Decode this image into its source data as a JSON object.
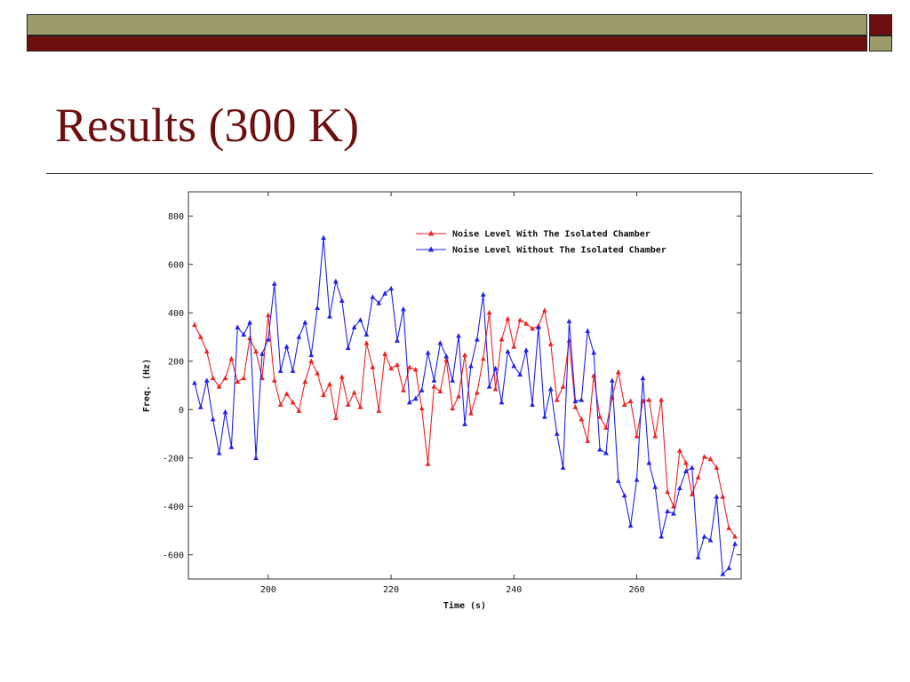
{
  "slide": {
    "title": "Results (300 K)",
    "colors": {
      "accent_dark_red": "#6e0f0f",
      "accent_olive": "#9c9b6a"
    }
  },
  "chart_data": {
    "type": "line",
    "title": "",
    "xlabel": "Time (s)",
    "ylabel": "Freq. (Hz)",
    "xlim": [
      187,
      277
    ],
    "ylim": [
      -700,
      900
    ],
    "xticks": [
      200,
      220,
      240,
      260
    ],
    "yticks": [
      -600,
      -400,
      -200,
      0,
      200,
      400,
      600,
      800
    ],
    "legend_position": "top-right",
    "grid": false,
    "series": [
      {
        "name": "Noise Level With The Isolated Chamber",
        "color": "#ee2222",
        "marker": "triangle",
        "x": [
          188,
          189,
          190,
          191,
          192,
          193,
          194,
          195,
          196,
          197,
          198,
          199,
          200,
          201,
          202,
          203,
          204,
          205,
          206,
          207,
          208,
          209,
          210,
          211,
          212,
          213,
          214,
          215,
          216,
          217,
          218,
          219,
          220,
          221,
          222,
          223,
          224,
          225,
          226,
          227,
          228,
          229,
          230,
          231,
          232,
          233,
          234,
          235,
          236,
          237,
          238,
          239,
          240,
          241,
          242,
          243,
          244,
          245,
          246,
          247,
          248,
          249,
          250,
          251,
          252,
          253,
          254,
          255,
          256,
          257,
          258,
          259,
          260,
          261,
          262,
          263,
          264,
          265,
          266,
          267,
          268,
          269,
          270,
          271,
          272,
          273,
          274,
          275,
          276
        ],
        "y": [
          350,
          300,
          240,
          130,
          95,
          130,
          210,
          115,
          130,
          295,
          240,
          130,
          390,
          120,
          20,
          65,
          30,
          -5,
          115,
          200,
          150,
          60,
          105,
          -35,
          135,
          20,
          70,
          10,
          275,
          175,
          -5,
          230,
          170,
          185,
          80,
          175,
          165,
          5,
          -225,
          95,
          75,
          205,
          5,
          55,
          225,
          -15,
          70,
          210,
          400,
          85,
          290,
          375,
          260,
          370,
          355,
          335,
          345,
          410,
          270,
          40,
          95,
          285,
          10,
          -40,
          -130,
          140,
          -30,
          -75,
          50,
          155,
          20,
          35,
          -110,
          35,
          40,
          -110,
          40,
          -340,
          -400,
          -170,
          -220,
          -350,
          -280,
          -195,
          -205,
          -240,
          -360,
          -490,
          -525
        ]
      },
      {
        "name": "Noise Level Without The Isolated Chamber",
        "color": "#2222ee",
        "marker": "triangle",
        "x": [
          188,
          189,
          190,
          191,
          192,
          193,
          194,
          195,
          196,
          197,
          198,
          199,
          200,
          201,
          202,
          203,
          204,
          205,
          206,
          207,
          208,
          209,
          210,
          211,
          212,
          213,
          214,
          215,
          216,
          217,
          218,
          219,
          220,
          221,
          222,
          223,
          224,
          225,
          226,
          227,
          228,
          229,
          230,
          231,
          232,
          233,
          234,
          235,
          236,
          237,
          238,
          239,
          240,
          241,
          242,
          243,
          244,
          245,
          246,
          247,
          248,
          249,
          250,
          251,
          252,
          253,
          254,
          255,
          256,
          257,
          258,
          259,
          260,
          261,
          262,
          263,
          264,
          265,
          266,
          267,
          268,
          269,
          270,
          271,
          272,
          273,
          274,
          275,
          276
        ],
        "y": [
          110,
          10,
          120,
          -40,
          -180,
          -10,
          -155,
          340,
          310,
          360,
          -200,
          230,
          290,
          520,
          160,
          260,
          160,
          300,
          360,
          225,
          420,
          710,
          385,
          530,
          450,
          255,
          340,
          370,
          310,
          465,
          440,
          480,
          500,
          285,
          415,
          30,
          45,
          80,
          235,
          120,
          275,
          220,
          120,
          305,
          -60,
          180,
          290,
          475,
          95,
          170,
          30,
          240,
          180,
          145,
          245,
          20,
          340,
          -30,
          85,
          -100,
          -240,
          365,
          35,
          40,
          325,
          235,
          -165,
          -180,
          120,
          -295,
          -355,
          -480,
          -290,
          130,
          -220,
          -320,
          -525,
          -420,
          -430,
          -325,
          -255,
          -240,
          -610,
          -525,
          -540,
          -360,
          -680,
          -655,
          -555
        ]
      }
    ]
  }
}
